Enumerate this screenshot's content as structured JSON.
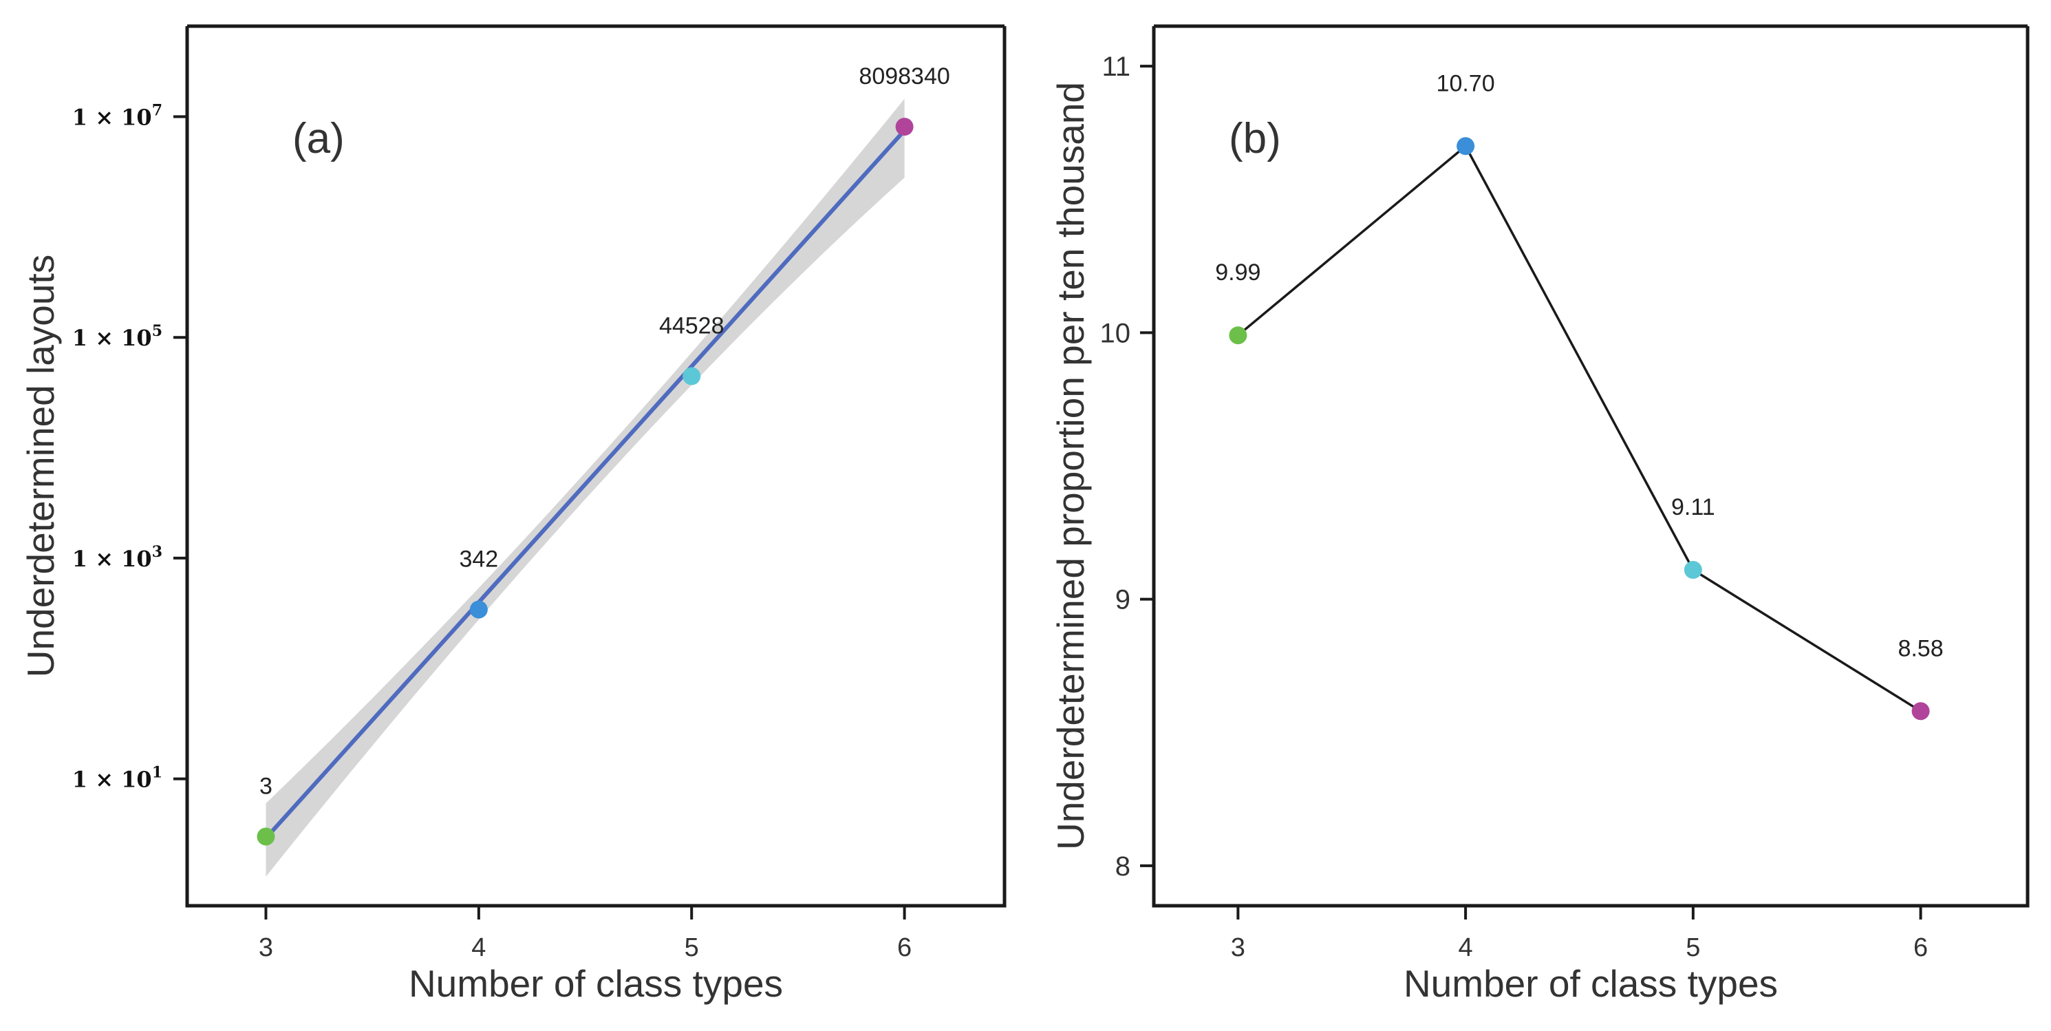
{
  "chart_data": [
    {
      "type": "scatter",
      "panel_label": "(a)",
      "scale_y": "log10",
      "fit": "linear regression on log scale with confidence band",
      "categories": [
        3,
        4,
        5,
        6
      ],
      "values": [
        3,
        342,
        44528,
        8098340
      ],
      "data_labels": [
        "3",
        "342",
        "44528",
        "8098340"
      ],
      "point_colors": [
        "#6cc04a",
        "#3a8fd8",
        "#5cc7d6",
        "#b0449a"
      ],
      "fit_line": {
        "y_at_3": 2.9,
        "y_at_6": 7500000
      },
      "band": {
        "lo_at_3": 1.3,
        "hi_at_3": 6.0,
        "lo_at_6": 2800000,
        "hi_at_6": 14500000
      },
      "xlabel": "Number of class types",
      "ylabel": "Underdetermined layouts",
      "xlim": [
        2.63,
        6.47
      ],
      "ylim_log10": [
        -0.15,
        7.82
      ],
      "x_ticks": [
        "3",
        "4",
        "5",
        "6"
      ],
      "y_ticks": [
        {
          "value": 10,
          "base": "1 × 10",
          "exp": "1"
        },
        {
          "value": 1000,
          "base": "1 × 10",
          "exp": "3"
        },
        {
          "value": 100000,
          "base": "1 × 10",
          "exp": "5"
        },
        {
          "value": 10000000,
          "base": "1 × 10",
          "exp": "7"
        }
      ],
      "colors": {
        "fit_line": "#4f6bbf",
        "band": "#c8c8c8"
      }
    },
    {
      "type": "line",
      "panel_label": "(b)",
      "categories": [
        3,
        4,
        5,
        6
      ],
      "values": [
        9.99,
        10.7,
        9.11,
        8.58
      ],
      "data_labels": [
        "9.99",
        "10.70",
        "9.11",
        "8.58"
      ],
      "point_colors": [
        "#6cc04a",
        "#3a8fd8",
        "#5cc7d6",
        "#b0449a"
      ],
      "xlabel": "Number of class types",
      "ylabel": "Underdetermined proportion per ten thousand",
      "xlim": [
        2.63,
        6.47
      ],
      "ylim": [
        7.85,
        11.15
      ],
      "x_ticks": [
        "3",
        "4",
        "5",
        "6"
      ],
      "y_ticks": [
        "8",
        "9",
        "10",
        "11"
      ],
      "colors": {
        "line": "#1a1a1a"
      }
    }
  ]
}
